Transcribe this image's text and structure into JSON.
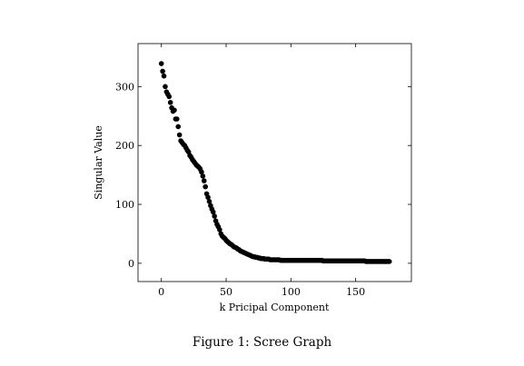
{
  "caption": "Figure 1: Scree Graph",
  "chart_data": {
    "type": "scatter",
    "title": "",
    "xlabel": "k Pricipal Component",
    "ylabel": "Singular Value",
    "xlim": [
      -18,
      193
    ],
    "ylim": [
      -31,
      373
    ],
    "xticks": [
      0,
      50,
      100,
      150
    ],
    "yticks": [
      0,
      100,
      200,
      300
    ],
    "grid": false,
    "legend": "none",
    "marker_color": "#000000",
    "series": [
      {
        "x": [
          0,
          1,
          2,
          3,
          4,
          5,
          6,
          7,
          8,
          9,
          10,
          11,
          12,
          13,
          14,
          15,
          16,
          17,
          18,
          19,
          20,
          21,
          22,
          23,
          24,
          25,
          26,
          27,
          28,
          29,
          30,
          31,
          32,
          33,
          34,
          35,
          36,
          37,
          38,
          39,
          40,
          41,
          42,
          43,
          44,
          45,
          46,
          47,
          48,
          49,
          50,
          51,
          52,
          53,
          54,
          55,
          56,
          57,
          58,
          59,
          60,
          61,
          62,
          63,
          64,
          65,
          66,
          67,
          68,
          69,
          70,
          71,
          72,
          73,
          74,
          75,
          76,
          77,
          78,
          79,
          80,
          81,
          82,
          83,
          84,
          85,
          86,
          87,
          88,
          89,
          90,
          91,
          92,
          93,
          94,
          95,
          96,
          97,
          98,
          99,
          100,
          101,
          102,
          103,
          104,
          105,
          106,
          107,
          108,
          109,
          110,
          111,
          112,
          113,
          114,
          115,
          116,
          117,
          118,
          119,
          120,
          121,
          122,
          123,
          124,
          125,
          126,
          127,
          128,
          129,
          130,
          131,
          132,
          133,
          134,
          135,
          136,
          137,
          138,
          139,
          140,
          141,
          142,
          143,
          144,
          145,
          146,
          147,
          148,
          149,
          150,
          151,
          152,
          153,
          154,
          155,
          156,
          157,
          158,
          159,
          160,
          161,
          162,
          163,
          164,
          165,
          166,
          167,
          168,
          169,
          170,
          171,
          172,
          173,
          174,
          175,
          176
        ],
        "y": [
          339,
          326,
          318,
          300,
          291,
          287,
          283,
          273,
          264,
          258,
          260,
          245,
          245,
          232,
          218,
          208,
          205,
          202,
          200,
          196,
          192,
          189,
          183,
          180,
          176,
          173,
          170,
          167,
          165,
          163,
          160,
          155,
          148,
          140,
          130,
          118,
          112,
          105,
          98,
          92,
          87,
          80,
          72,
          66,
          62,
          57,
          50,
          46,
          44,
          42,
          39,
          37,
          35,
          33,
          32,
          30,
          28,
          27,
          26,
          24,
          23,
          21,
          20,
          19,
          18,
          17,
          16,
          15,
          14,
          13,
          12,
          11,
          11,
          10,
          10,
          9,
          9,
          8,
          8,
          8,
          7,
          7,
          7,
          7,
          6,
          6,
          6,
          6,
          6,
          6,
          6,
          6,
          5,
          5,
          5,
          5,
          5,
          5,
          5,
          5,
          5,
          5,
          5,
          5,
          5,
          5,
          5,
          5,
          5,
          5,
          5,
          5,
          5,
          5,
          5,
          5,
          5,
          5,
          5,
          5,
          5,
          5,
          5,
          5,
          5,
          4,
          4,
          4,
          4,
          4,
          4,
          4,
          4,
          4,
          4,
          4,
          4,
          4,
          4,
          4,
          4,
          4,
          4,
          4,
          4,
          4,
          4,
          4,
          4,
          4,
          4,
          4,
          4,
          4,
          4,
          4,
          4,
          4,
          3,
          3,
          3,
          3,
          3,
          3,
          3,
          3,
          3,
          3,
          3,
          3,
          3,
          3,
          3,
          3,
          3,
          3,
          3
        ]
      }
    ]
  }
}
